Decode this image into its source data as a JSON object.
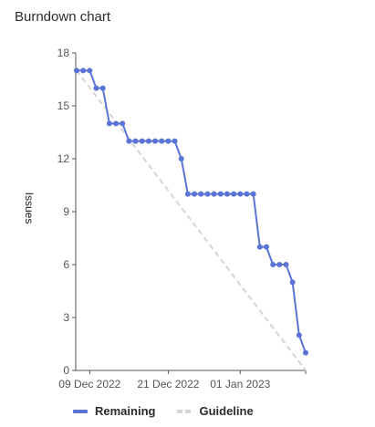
{
  "page": {
    "title": "Burndown chart"
  },
  "chart_data": {
    "type": "line",
    "title": "Burndown chart",
    "xlabel": "",
    "ylabel": "Issues",
    "ylim": [
      0,
      18
    ],
    "yticks": [
      0,
      3,
      6,
      9,
      12,
      15,
      18
    ],
    "x_start": "2022-12-09",
    "x_tick_labels": [
      "09 Dec 2022",
      "21 Dec 2022",
      "01 Jan 2023"
    ],
    "x_tick_dates": [
      "2022-12-09",
      "2022-12-21",
      "2023-01-01"
    ],
    "x_end": "2023-01-11",
    "series": [
      {
        "name": "Remaining",
        "color": "#5a74d6",
        "points": [
          [
            "2022-12-07",
            17
          ],
          [
            "2022-12-08",
            17
          ],
          [
            "2022-12-09",
            17
          ],
          [
            "2022-12-10",
            16
          ],
          [
            "2022-12-11",
            16
          ],
          [
            "2022-12-12",
            14
          ],
          [
            "2022-12-13",
            14
          ],
          [
            "2022-12-14",
            14
          ],
          [
            "2022-12-15",
            13
          ],
          [
            "2022-12-16",
            13
          ],
          [
            "2022-12-17",
            13
          ],
          [
            "2022-12-18",
            13
          ],
          [
            "2022-12-19",
            13
          ],
          [
            "2022-12-20",
            13
          ],
          [
            "2022-12-21",
            13
          ],
          [
            "2022-12-22",
            13
          ],
          [
            "2022-12-23",
            12
          ],
          [
            "2022-12-24",
            10
          ],
          [
            "2022-12-25",
            10
          ],
          [
            "2022-12-26",
            10
          ],
          [
            "2022-12-27",
            10
          ],
          [
            "2022-12-28",
            10
          ],
          [
            "2022-12-29",
            10
          ],
          [
            "2022-12-30",
            10
          ],
          [
            "2022-12-31",
            10
          ],
          [
            "2023-01-01",
            10
          ],
          [
            "2023-01-02",
            10
          ],
          [
            "2023-01-03",
            10
          ],
          [
            "2023-01-04",
            7
          ],
          [
            "2023-01-05",
            7
          ],
          [
            "2023-01-06",
            6
          ],
          [
            "2023-01-07",
            6
          ],
          [
            "2023-01-08",
            6
          ],
          [
            "2023-01-09",
            5
          ],
          [
            "2023-01-10",
            2
          ],
          [
            "2023-01-11",
            1
          ]
        ]
      },
      {
        "name": "Guideline",
        "color": "#d4d4d4",
        "dashed": true,
        "points": [
          [
            "2022-12-07",
            17
          ],
          [
            "2023-01-11",
            0
          ]
        ]
      }
    ],
    "grid": false,
    "legend_position": "bottom-left"
  },
  "legend": [
    {
      "label": "Remaining",
      "style": "solid",
      "color": "#5a74d6"
    },
    {
      "label": "Guideline",
      "style": "dashed",
      "color": "#d4d4d4"
    }
  ]
}
